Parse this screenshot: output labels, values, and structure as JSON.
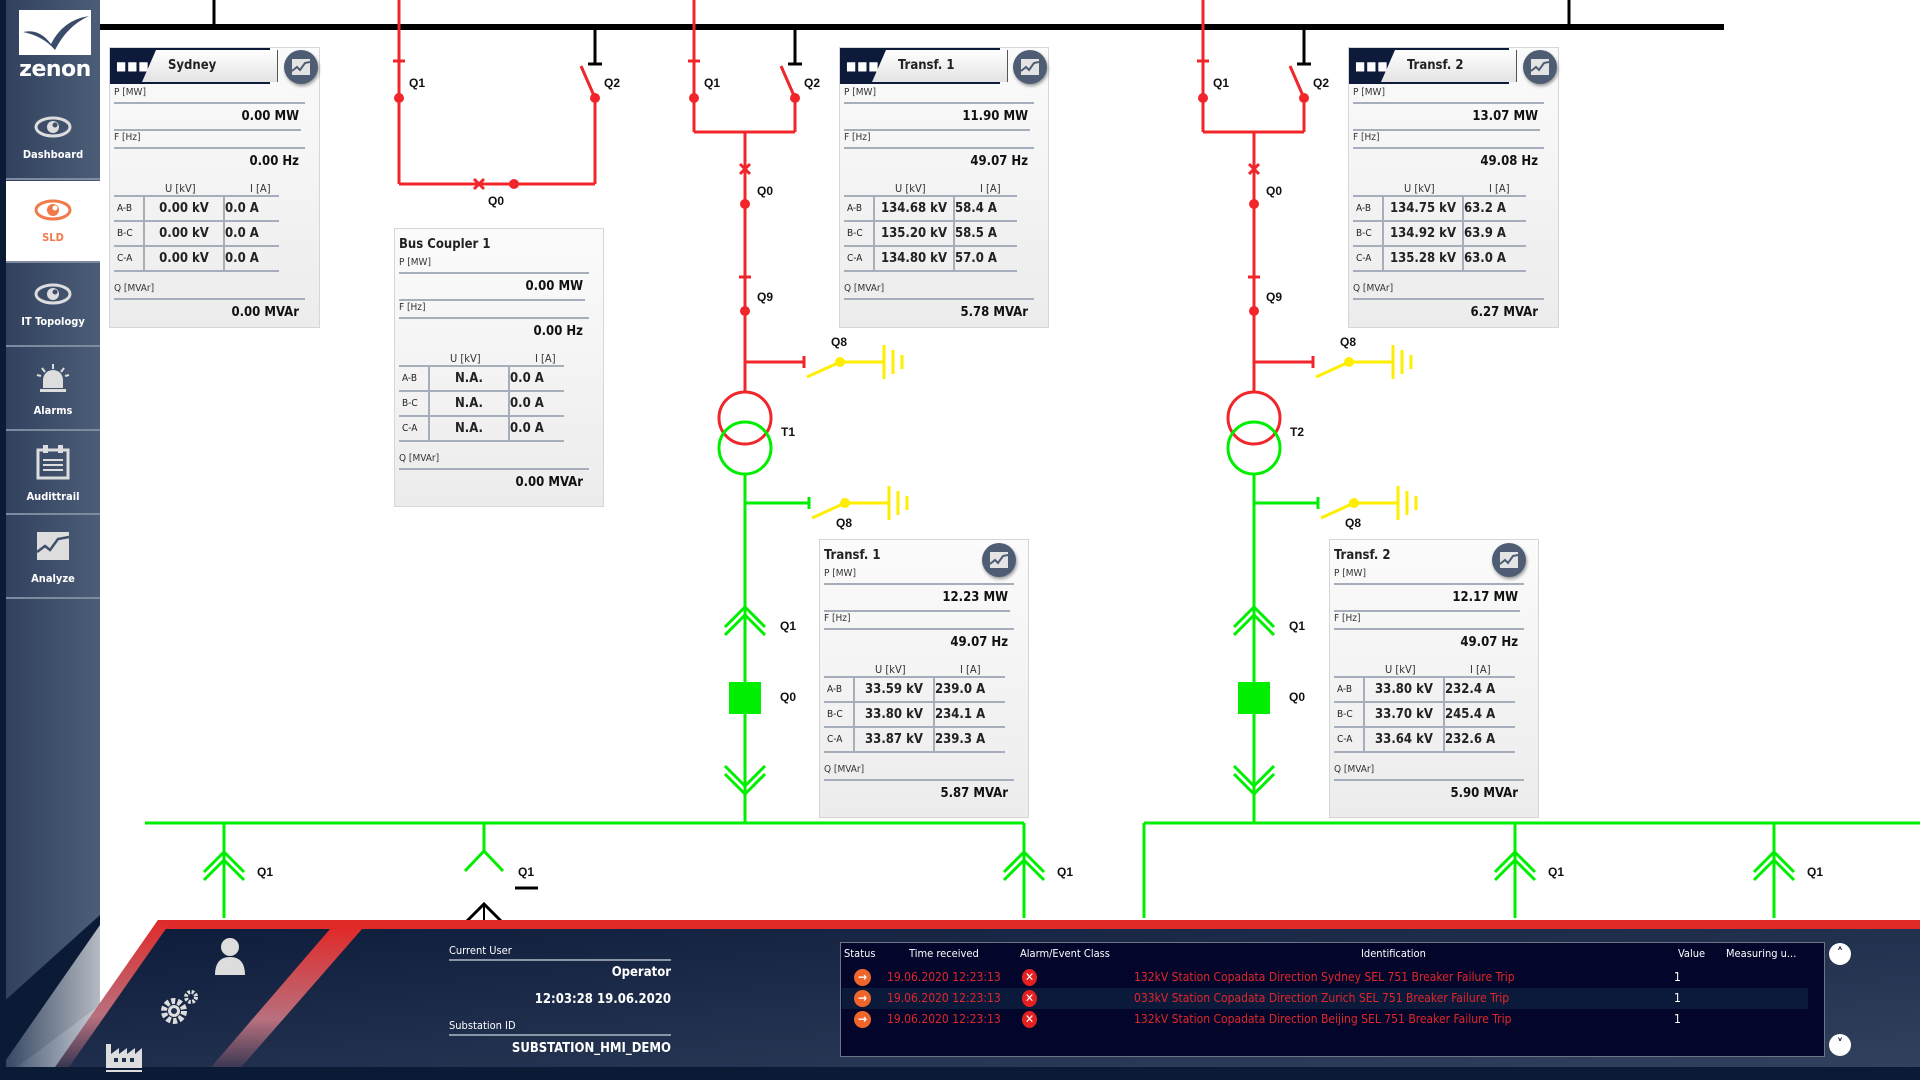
{
  "app": {
    "logo_text": "zenon"
  },
  "sidebar": {
    "items": [
      {
        "label": "Dashboard",
        "icon": "eye-icon"
      },
      {
        "label": "SLD",
        "icon": "eye-icon",
        "active": true
      },
      {
        "label": "IT Topology",
        "icon": "eye-icon"
      },
      {
        "label": "Alarms",
        "icon": "alarm-light-icon"
      },
      {
        "label": "Audittrail",
        "icon": "calendar-list-icon"
      },
      {
        "label": "Analyze",
        "icon": "chart-icon"
      }
    ]
  },
  "diagram": {
    "labels": {
      "bc_q1": "Q1",
      "bc_q2": "Q2",
      "bc_q0": "Q0",
      "t1_q1": "Q1",
      "t1_q2": "Q2",
      "t1_q0": "Q0",
      "t1_q9": "Q9",
      "t1_q8_top": "Q8",
      "t1": "T1",
      "t1_q8_bottom": "Q8",
      "t1_lv_q1": "Q1",
      "t1_lv_q0": "Q0",
      "t2_q1": "Q1",
      "t2_q2": "Q2",
      "t2_q0": "Q0",
      "t2_q9": "Q9",
      "t2_q8_top": "Q8",
      "t2": "T2",
      "t2_q8_bottom": "Q8",
      "t2_lv_q1": "Q1",
      "t2_lv_q0": "Q0",
      "feeder1": "Q1",
      "feeder2": "Q1",
      "feeder3": "Q1",
      "feeder4": "Q1",
      "feeder5": "Q1"
    },
    "colors": {
      "energized_hv": "#f0262a",
      "energized_lv": "#00ee00",
      "earth": "#ffee00",
      "deenergized": "#000000"
    }
  },
  "panels": {
    "sydney": {
      "title": "Sydney",
      "p_label": "P [MW]",
      "p": "0.00 MW",
      "f_label": "F [Hz]",
      "f": "0.00 Hz",
      "u_label": "U [kV]",
      "i_label": "I [A]",
      "rows": [
        {
          "ph": "A-B",
          "u": "0.00 kV",
          "i": "0.0 A"
        },
        {
          "ph": "B-C",
          "u": "0.00 kV",
          "i": "0.0 A"
        },
        {
          "ph": "C-A",
          "u": "0.00 kV",
          "i": "0.0 A"
        }
      ],
      "q_label": "Q [MVAr]",
      "q": "0.00 MVAr"
    },
    "bus_coupler": {
      "title": "Bus Coupler 1",
      "p_label": "P [MW]",
      "p": "0.00 MW",
      "f_label": "F [Hz]",
      "f": "0.00 Hz",
      "u_label": "U [kV]",
      "i_label": "I [A]",
      "rows": [
        {
          "ph": "A-B",
          "u": "N.A.",
          "i": "0.0 A"
        },
        {
          "ph": "B-C",
          "u": "N.A.",
          "i": "0.0 A"
        },
        {
          "ph": "C-A",
          "u": "N.A.",
          "i": "0.0 A"
        }
      ],
      "q_label": "Q [MVAr]",
      "q": "0.00 MVAr"
    },
    "transf1_hv": {
      "title": "Transf. 1",
      "p_label": "P [MW]",
      "p": "11.90 MW",
      "f_label": "F [Hz]",
      "f": "49.07 Hz",
      "u_label": "U [kV]",
      "i_label": "I [A]",
      "rows": [
        {
          "ph": "A-B",
          "u": "134.68 kV",
          "i": "58.4 A"
        },
        {
          "ph": "B-C",
          "u": "135.20 kV",
          "i": "58.5 A"
        },
        {
          "ph": "C-A",
          "u": "134.80 kV",
          "i": "57.0 A"
        }
      ],
      "q_label": "Q [MVAr]",
      "q": "5.78 MVAr"
    },
    "transf2_hv": {
      "title": "Transf. 2",
      "p_label": "P [MW]",
      "p": "13.07 MW",
      "f_label": "F [Hz]",
      "f": "49.08 Hz",
      "u_label": "U [kV]",
      "i_label": "I [A]",
      "rows": [
        {
          "ph": "A-B",
          "u": "134.75 kV",
          "i": "63.2 A"
        },
        {
          "ph": "B-C",
          "u": "134.92 kV",
          "i": "63.9 A"
        },
        {
          "ph": "C-A",
          "u": "135.28 kV",
          "i": "63.0 A"
        }
      ],
      "q_label": "Q [MVAr]",
      "q": "6.27 MVAr"
    },
    "transf1_lv": {
      "title": "Transf. 1",
      "p_label": "P [MW]",
      "p": "12.23 MW",
      "f_label": "F [Hz]",
      "f": "49.07 Hz",
      "u_label": "U [kV]",
      "i_label": "I [A]",
      "rows": [
        {
          "ph": "A-B",
          "u": "33.59 kV",
          "i": "239.0 A"
        },
        {
          "ph": "B-C",
          "u": "33.80 kV",
          "i": "234.1 A"
        },
        {
          "ph": "C-A",
          "u": "33.87 kV",
          "i": "239.3 A"
        }
      ],
      "q_label": "Q [MVAr]",
      "q": "5.87 MVAr"
    },
    "transf2_lv": {
      "title": "Transf. 2",
      "p_label": "P [MW]",
      "p": "12.17 MW",
      "f_label": "F [Hz]",
      "f": "49.07 Hz",
      "u_label": "U [kV]",
      "i_label": "I [A]",
      "rows": [
        {
          "ph": "A-B",
          "u": "33.80 kV",
          "i": "232.4 A"
        },
        {
          "ph": "B-C",
          "u": "33.70 kV",
          "i": "245.4 A"
        },
        {
          "ph": "C-A",
          "u": "33.64 kV",
          "i": "232.6 A"
        }
      ],
      "q_label": "Q [MVAr]",
      "q": "5.90 MVAr"
    }
  },
  "footer": {
    "current_user_label": "Current User",
    "current_user": "Operator",
    "datetime": "12:03:28 19.06.2020",
    "substation_label": "Substation ID",
    "substation": "SUBSTATION_HMI_DEMO"
  },
  "alarms": {
    "columns": [
      "Status",
      "Time received",
      "Alarm/Event Class",
      "Identification",
      "Value",
      "Measuring u..."
    ],
    "rows": [
      {
        "time": "19.06.2020 12:23:13",
        "identification": "132kV Station Copadata Direction Sydney SEL 751 Breaker Failure Trip",
        "value": "1"
      },
      {
        "time": "19.06.2020 12:23:13",
        "identification": "033kV Station Copadata Direction Zurich SEL 751 Breaker Failure Trip",
        "value": "1"
      },
      {
        "time": "19.06.2020 12:23:13",
        "identification": "132kV Station Copadata Direction Beijing SEL 751 Breaker Failure Trip",
        "value": "1"
      }
    ]
  }
}
